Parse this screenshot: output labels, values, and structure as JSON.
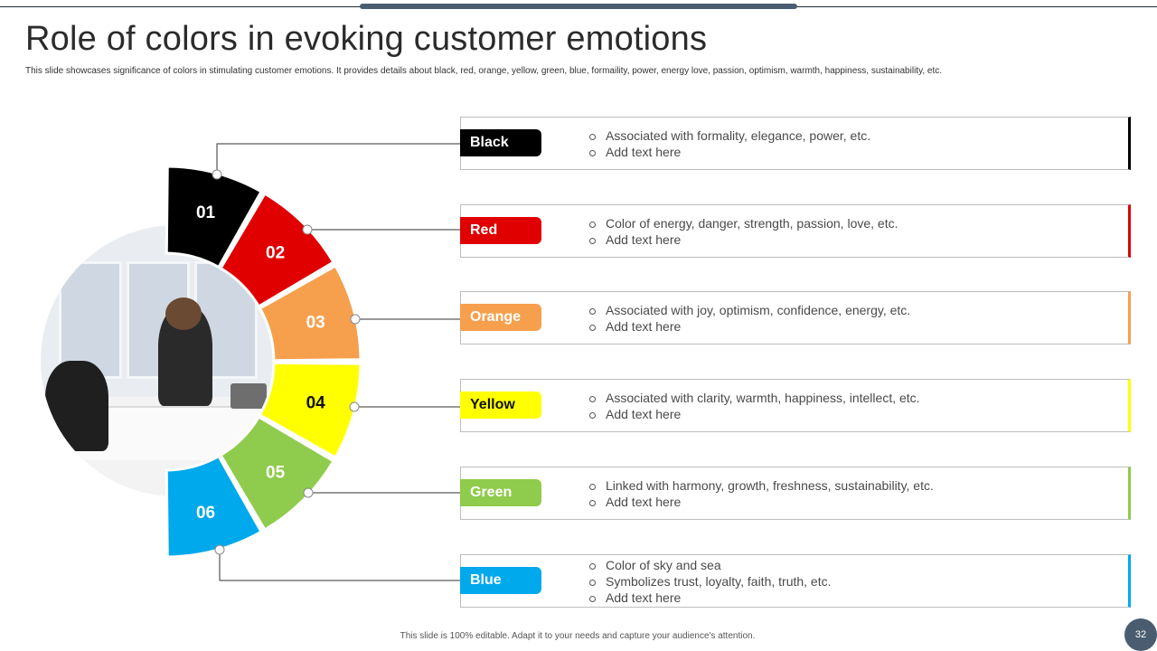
{
  "title": "Role of colors in evoking customer emotions",
  "subtitle": "This slide showcases significance of colors in stimulating customer emotions.  It provides details about black, red, orange, yellow, green, blue, formaility, power, energy love, passion, optimism,  warmth, happiness, sustainability, etc.",
  "segments": [
    {
      "number": "01",
      "color": "#000000",
      "text_color": "#ffffff"
    },
    {
      "number": "02",
      "color": "#e00000",
      "text_color": "#ffffff"
    },
    {
      "number": "03",
      "color": "#f6a04d",
      "text_color": "#ffffff"
    },
    {
      "number": "04",
      "color": "#ffff00",
      "text_color": "#111111"
    },
    {
      "number": "05",
      "color": "#8fcb4c",
      "text_color": "#ffffff"
    },
    {
      "number": "06",
      "color": "#00a8ec",
      "text_color": "#ffffff"
    }
  ],
  "rows": [
    {
      "label": "Black",
      "color": "#000000",
      "label_color": "#ffffff",
      "bullets": [
        "Associated with formality, elegance, power, etc.",
        "Add text here"
      ]
    },
    {
      "label": "Red",
      "color": "#e00000",
      "label_color": "#ffffff",
      "bullets": [
        "Color of energy, danger, strength, passion, love, etc.",
        "Add text here"
      ]
    },
    {
      "label": "Orange",
      "color": "#f6a04d",
      "label_color": "#ffffff",
      "bullets": [
        "Associated with joy, optimism, confidence, energy, etc.",
        "Add text here"
      ]
    },
    {
      "label": "Yellow",
      "color": "#ffff00",
      "label_color": "#111111",
      "bullets": [
        "Associated with clarity, warmth, happiness, intellect, etc.",
        "Add text here"
      ]
    },
    {
      "label": "Green",
      "color": "#8fcb4c",
      "label_color": "#ffffff",
      "bullets": [
        "Linked with harmony, growth, freshness, sustainability, etc.",
        "Add text here"
      ]
    },
    {
      "label": "Blue",
      "color": "#00a8ec",
      "label_color": "#ffffff",
      "bullets": [
        "Color of sky and sea",
        "Symbolizes trust, loyalty, faith, truth, etc.",
        "Add text here"
      ]
    }
  ],
  "footer": "This slide is 100% editable.  Adapt it to your needs and capture your audience's attention.",
  "page_number": "32"
}
